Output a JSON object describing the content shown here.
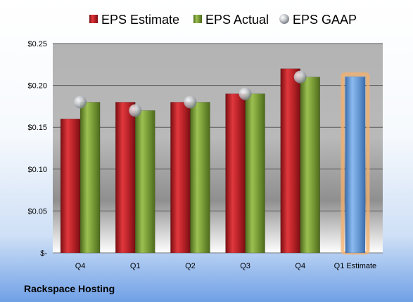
{
  "company": "Rackspace Hosting",
  "chart_data": {
    "type": "bar",
    "categories": [
      "Q4",
      "Q1",
      "Q2",
      "Q3",
      "Q4",
      "Q1 Estimate"
    ],
    "series": [
      {
        "name": "EPS Estimate",
        "kind": "bar",
        "color": "#c0262b",
        "values": [
          0.16,
          0.18,
          0.18,
          0.19,
          0.22,
          null
        ]
      },
      {
        "name": "EPS Actual",
        "kind": "bar",
        "color": "#7fa13a",
        "values": [
          0.18,
          0.17,
          0.18,
          0.19,
          0.21,
          null
        ]
      },
      {
        "name": "EPS GAAP",
        "kind": "marker",
        "color": "#b8bcc2",
        "values": [
          0.18,
          0.17,
          0.18,
          0.19,
          0.21,
          null
        ]
      },
      {
        "name": "",
        "kind": "bar",
        "color": "#6fa0d8",
        "highlight": "#f5b06a",
        "values": [
          null,
          null,
          null,
          null,
          null,
          0.21
        ]
      }
    ],
    "yticks": [
      "$-",
      "$0.05",
      "$0.10",
      "$0.15",
      "$0.20",
      "$0.25"
    ],
    "ylim": [
      0,
      0.25
    ],
    "grid": true,
    "legend": "top"
  }
}
